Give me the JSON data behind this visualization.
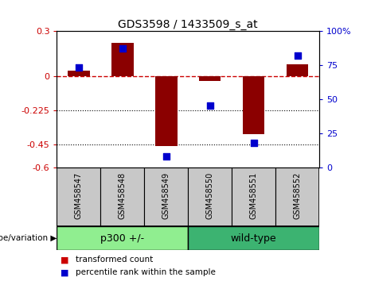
{
  "title": "GDS3598 / 1433509_s_at",
  "samples": [
    "GSM458547",
    "GSM458548",
    "GSM458549",
    "GSM458550",
    "GSM458551",
    "GSM458552"
  ],
  "transformed_count": [
    0.04,
    0.22,
    -0.46,
    -0.03,
    -0.38,
    0.08
  ],
  "percentile_rank": [
    73,
    87,
    8,
    45,
    18,
    82
  ],
  "group_p300": [
    0,
    1,
    2
  ],
  "group_wildtype": [
    3,
    4,
    5
  ],
  "group_p300_label": "p300 +/-",
  "group_wildtype_label": "wild-type",
  "group_label_prefix": "genotype/variation ▶",
  "ylim_left": [
    -0.6,
    0.3
  ],
  "ylim_right": [
    0,
    100
  ],
  "yticks_left": [
    0.3,
    0,
    -0.225,
    -0.45,
    -0.6
  ],
  "ytick_labels_left": [
    "0.3",
    "0",
    "-0.225",
    "-0.45",
    "-0.6"
  ],
  "yticks_right": [
    100,
    75,
    50,
    25,
    0
  ],
  "ytick_labels_right": [
    "100%",
    "75",
    "50",
    "25",
    "0"
  ],
  "hline_y": 0,
  "dotted_lines": [
    -0.225,
    -0.45
  ],
  "bar_color": "#8B0000",
  "scatter_color": "#0000CD",
  "bar_width": 0.5,
  "scatter_size": 35,
  "legend_items": [
    {
      "label": "transformed count",
      "color": "#CC0000"
    },
    {
      "label": "percentile rank within the sample",
      "color": "#0000CD"
    }
  ],
  "ytick_left_color": "#CC0000",
  "ytick_right_color": "#0000CD",
  "background_plot": "#FFFFFF",
  "background_xticklabels": "#C8C8C8",
  "background_group_bar": "#90EE90",
  "fig_bg": "#FFFFFF",
  "hline_color": "#CC0000",
  "dotted_color": "#000000"
}
